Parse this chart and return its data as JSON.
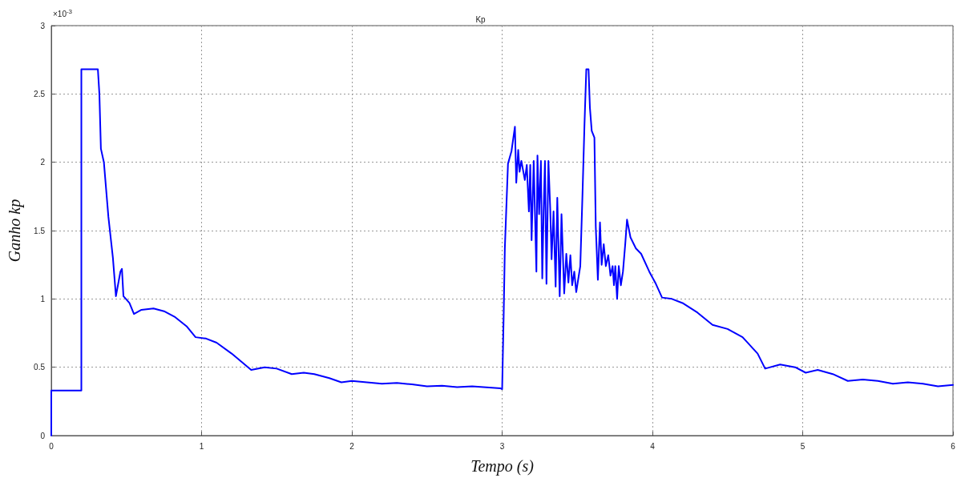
{
  "chart_data": {
    "type": "line",
    "title": "Kp",
    "xlabel": "Tempo (s)",
    "ylabel": "Ganho kp",
    "annotations": [
      "×10$^{-3}$"
    ],
    "xlim": [
      0,
      6
    ],
    "xticks": [
      0,
      1,
      2,
      3,
      4,
      5,
      6
    ],
    "ylim": [
      0,
      3
    ],
    "yticks": [
      0,
      0.5,
      1,
      1.5,
      2,
      2.5,
      3
    ],
    "grid": true,
    "marker": "none",
    "line_style": "solid",
    "series": [
      {
        "color": "#0000ff",
        "x": [
          0,
          0,
          0.2,
          0.2,
          0.31,
          0.32,
          0.33,
          0.35,
          0.38,
          0.41,
          0.43,
          0.46,
          0.47,
          0.48,
          0.52,
          0.55,
          0.6,
          0.68,
          0.75,
          0.82,
          0.9,
          0.96,
          1.03,
          1.1,
          1.2,
          1.33,
          1.42,
          1.5,
          1.6,
          1.68,
          1.75,
          1.85,
          1.93,
          2.0,
          2.1,
          2.2,
          2.3,
          2.4,
          2.5,
          2.6,
          2.7,
          2.8,
          2.99,
          3.0,
          3.01,
          3.018,
          3.027,
          3.039,
          3.062,
          3.085,
          3.094,
          3.107,
          3.116,
          3.128,
          3.151,
          3.164,
          3.178,
          3.187,
          3.196,
          3.21,
          3.228,
          3.235,
          3.246,
          3.258,
          3.267,
          3.276,
          3.285,
          3.295,
          3.308,
          3.32,
          3.329,
          3.342,
          3.356,
          3.367,
          3.383,
          3.395,
          3.413,
          3.427,
          3.441,
          3.454,
          3.466,
          3.48,
          3.493,
          3.507,
          3.52,
          3.534,
          3.548,
          3.56,
          3.575,
          3.584,
          3.596,
          3.614,
          3.623,
          3.637,
          3.651,
          3.662,
          3.676,
          3.69,
          3.706,
          3.721,
          3.735,
          3.744,
          3.753,
          3.765,
          3.776,
          3.79,
          3.804,
          3.819,
          3.831,
          3.854,
          3.89,
          3.925,
          3.979,
          4.023,
          4.064,
          4.13,
          4.2,
          4.3,
          4.4,
          4.5,
          4.6,
          4.7,
          4.75,
          4.85,
          4.95,
          5.02,
          5.1,
          5.2,
          5.3,
          5.4,
          5.5,
          5.6,
          5.7,
          5.8,
          5.9,
          6.0
        ],
        "values": [
          0,
          0.33,
          0.33,
          2.68,
          2.68,
          2.5,
          2.1,
          2.0,
          1.6,
          1.3,
          1.02,
          1.2,
          1.22,
          1.02,
          0.97,
          0.89,
          0.92,
          0.93,
          0.91,
          0.87,
          0.8,
          0.72,
          0.71,
          0.68,
          0.6,
          0.48,
          0.5,
          0.49,
          0.45,
          0.46,
          0.45,
          0.42,
          0.39,
          0.4,
          0.39,
          0.38,
          0.385,
          0.375,
          0.36,
          0.365,
          0.355,
          0.36,
          0.345,
          0.34,
          0.87,
          1.37,
          1.64,
          1.99,
          2.08,
          2.26,
          1.85,
          2.09,
          1.93,
          2.01,
          1.87,
          1.98,
          1.64,
          1.98,
          1.43,
          2.01,
          1.2,
          2.05,
          1.62,
          2.01,
          1.15,
          1.64,
          2.01,
          1.11,
          2.01,
          1.66,
          1.29,
          1.64,
          1.09,
          1.74,
          1.02,
          1.62,
          1.04,
          1.33,
          1.12,
          1.32,
          1.1,
          1.2,
          1.05,
          1.15,
          1.24,
          1.74,
          2.28,
          2.68,
          2.68,
          2.4,
          2.23,
          2.18,
          1.53,
          1.14,
          1.56,
          1.25,
          1.4,
          1.24,
          1.32,
          1.17,
          1.24,
          1.1,
          1.24,
          1.0,
          1.24,
          1.1,
          1.2,
          1.4,
          1.58,
          1.45,
          1.37,
          1.33,
          1.2,
          1.11,
          1.01,
          1.0,
          0.97,
          0.9,
          0.81,
          0.78,
          0.72,
          0.6,
          0.49,
          0.52,
          0.5,
          0.46,
          0.48,
          0.45,
          0.4,
          0.41,
          0.4,
          0.38,
          0.39,
          0.38,
          0.36,
          0.37
        ]
      }
    ]
  }
}
